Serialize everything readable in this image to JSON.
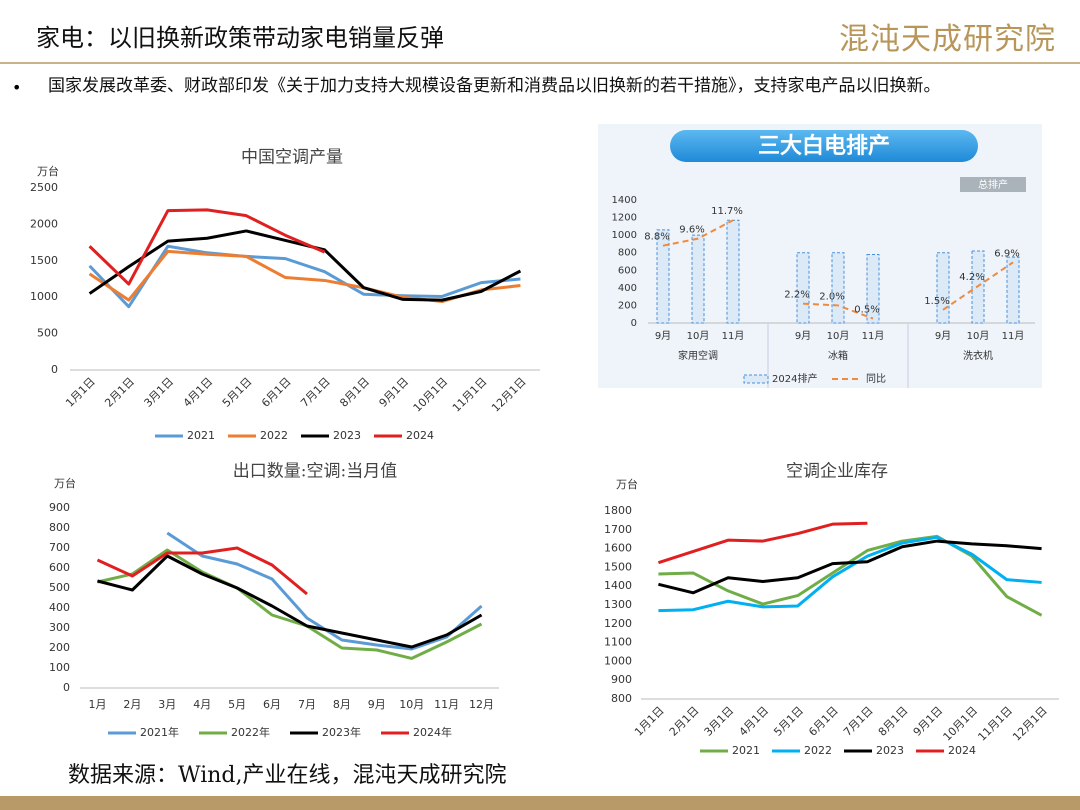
{
  "header": {
    "title": "家电：以旧换新政策带动家电销量反弹",
    "logo": "混沌天成研究院",
    "bullet": "国家发展改革委、财政部印发《关于加力支持大规模设备更新和消费品以旧换新的若干措施》，支持家电产品以旧换新。"
  },
  "footer": {
    "source": "数据来源：Wind,产业在线，混沌天成研究院"
  },
  "chart_data": [
    {
      "type": "line",
      "title": "中国空调产量",
      "unit": "万台",
      "categories": [
        "1月1日",
        "2月1日",
        "3月1日",
        "4月1日",
        "5月1日",
        "6月1日",
        "7月1日",
        "8月1日",
        "9月1日",
        "10月1日",
        "11月1日",
        "12月1日"
      ],
      "ylim": [
        0,
        2500
      ],
      "yticks": [
        0,
        500,
        1000,
        1500,
        2000,
        2500
      ],
      "grid": false,
      "series": [
        {
          "name": "2021",
          "color": "#5b9bd5",
          "values": [
            1430,
            870,
            1700,
            1610,
            1560,
            1530,
            1350,
            1040,
            1020,
            1010,
            1200,
            1250
          ]
        },
        {
          "name": "2022",
          "color": "#ed7d31",
          "values": [
            1320,
            960,
            1630,
            1590,
            1560,
            1270,
            1230,
            1130,
            1000,
            940,
            1100,
            1160
          ]
        },
        {
          "name": "2023",
          "color": "#000000",
          "values": [
            1050,
            1420,
            1770,
            1810,
            1910,
            1780,
            1650,
            1130,
            970,
            960,
            1080,
            1360
          ]
        },
        {
          "name": "2024",
          "color": "#e02020",
          "values": [
            1700,
            1180,
            2190,
            2200,
            2120,
            1850,
            1620,
            null,
            null,
            null,
            null,
            null
          ]
        }
      ]
    },
    {
      "type": "bar",
      "title": "三大白电排产",
      "badge": "总排产",
      "categories": [
        "9月",
        "10月",
        "11月",
        "9月",
        "10月",
        "11月",
        "9月",
        "10月",
        "11月"
      ],
      "groups": [
        "家用空调",
        "冰箱",
        "洗衣机"
      ],
      "ylim": [
        0,
        1400
      ],
      "yticks": [
        0,
        200,
        400,
        600,
        800,
        1000,
        1200,
        1400
      ],
      "y2lim": [
        0,
        14
      ],
      "series": [
        {
          "name": "2024排产",
          "color": "#4a90d9",
          "values": [
            1060,
            1000,
            1170,
            800,
            800,
            780,
            800,
            820,
            750
          ]
        },
        {
          "name": "同比",
          "color": "#f08a3c",
          "axis": "y2",
          "values": [
            8.8,
            9.6,
            11.7,
            2.2,
            2.0,
            0.5,
            1.5,
            4.2,
            6.9
          ],
          "value_labels": [
            "8.8%",
            "9.6%",
            "11.7%",
            "2.2%",
            "2.0%",
            "0.5%",
            "1.5%",
            "4.2%",
            "6.9%"
          ]
        }
      ]
    },
    {
      "type": "line",
      "title": "出口数量:空调:当月值",
      "unit": "万台",
      "categories": [
        "1月",
        "2月",
        "3月",
        "4月",
        "5月",
        "6月",
        "7月",
        "8月",
        "9月",
        "10月",
        "11月",
        "12月"
      ],
      "ylim": [
        0,
        900
      ],
      "yticks": [
        0,
        100,
        200,
        300,
        400,
        500,
        600,
        700,
        800,
        900
      ],
      "grid": false,
      "series": [
        {
          "name": "2021年",
          "color": "#5b9bd5",
          "values": [
            null,
            null,
            775,
            660,
            620,
            545,
            350,
            240,
            215,
            195,
            255,
            410
          ]
        },
        {
          "name": "2022年",
          "color": "#70ad47",
          "values": [
            530,
            570,
            690,
            580,
            500,
            365,
            310,
            200,
            190,
            148,
            230,
            320
          ]
        },
        {
          "name": "2023年",
          "color": "#000000",
          "values": [
            535,
            490,
            660,
            570,
            500,
            410,
            310,
            275,
            240,
            205,
            265,
            365
          ]
        },
        {
          "name": "2024年",
          "color": "#e02020",
          "values": [
            640,
            560,
            675,
            675,
            700,
            615,
            470,
            null,
            null,
            null,
            null,
            null
          ]
        }
      ]
    },
    {
      "type": "line",
      "title": "空调企业库存",
      "unit": "万台",
      "categories": [
        "1月1日",
        "2月1日",
        "3月1日",
        "4月1日",
        "5月1日",
        "6月1日",
        "7月1日",
        "8月1日",
        "9月1日",
        "10月1日",
        "11月1日",
        "12月1日"
      ],
      "ylim": [
        800,
        1800
      ],
      "yticks": [
        800,
        900,
        1000,
        1100,
        1200,
        1300,
        1400,
        1500,
        1600,
        1700,
        1800
      ],
      "grid": false,
      "series": [
        {
          "name": "2021",
          "color": "#70ad47",
          "values": [
            1465,
            1470,
            1375,
            1305,
            1350,
            1470,
            1590,
            1640,
            1665,
            1560,
            1345,
            1245
          ]
        },
        {
          "name": "2022",
          "color": "#00b0f0",
          "values": [
            1270,
            1275,
            1320,
            1290,
            1295,
            1450,
            1560,
            1630,
            1660,
            1570,
            1435,
            1420
          ]
        },
        {
          "name": "2023",
          "color": "#000000",
          "values": [
            1410,
            1365,
            1445,
            1425,
            1445,
            1520,
            1530,
            1610,
            1640,
            1625,
            1615,
            1600
          ]
        },
        {
          "name": "2024",
          "color": "#e02020",
          "values": [
            1525,
            1585,
            1645,
            1640,
            1680,
            1730,
            1735,
            null,
            null,
            null,
            null,
            null
          ]
        }
      ]
    }
  ]
}
